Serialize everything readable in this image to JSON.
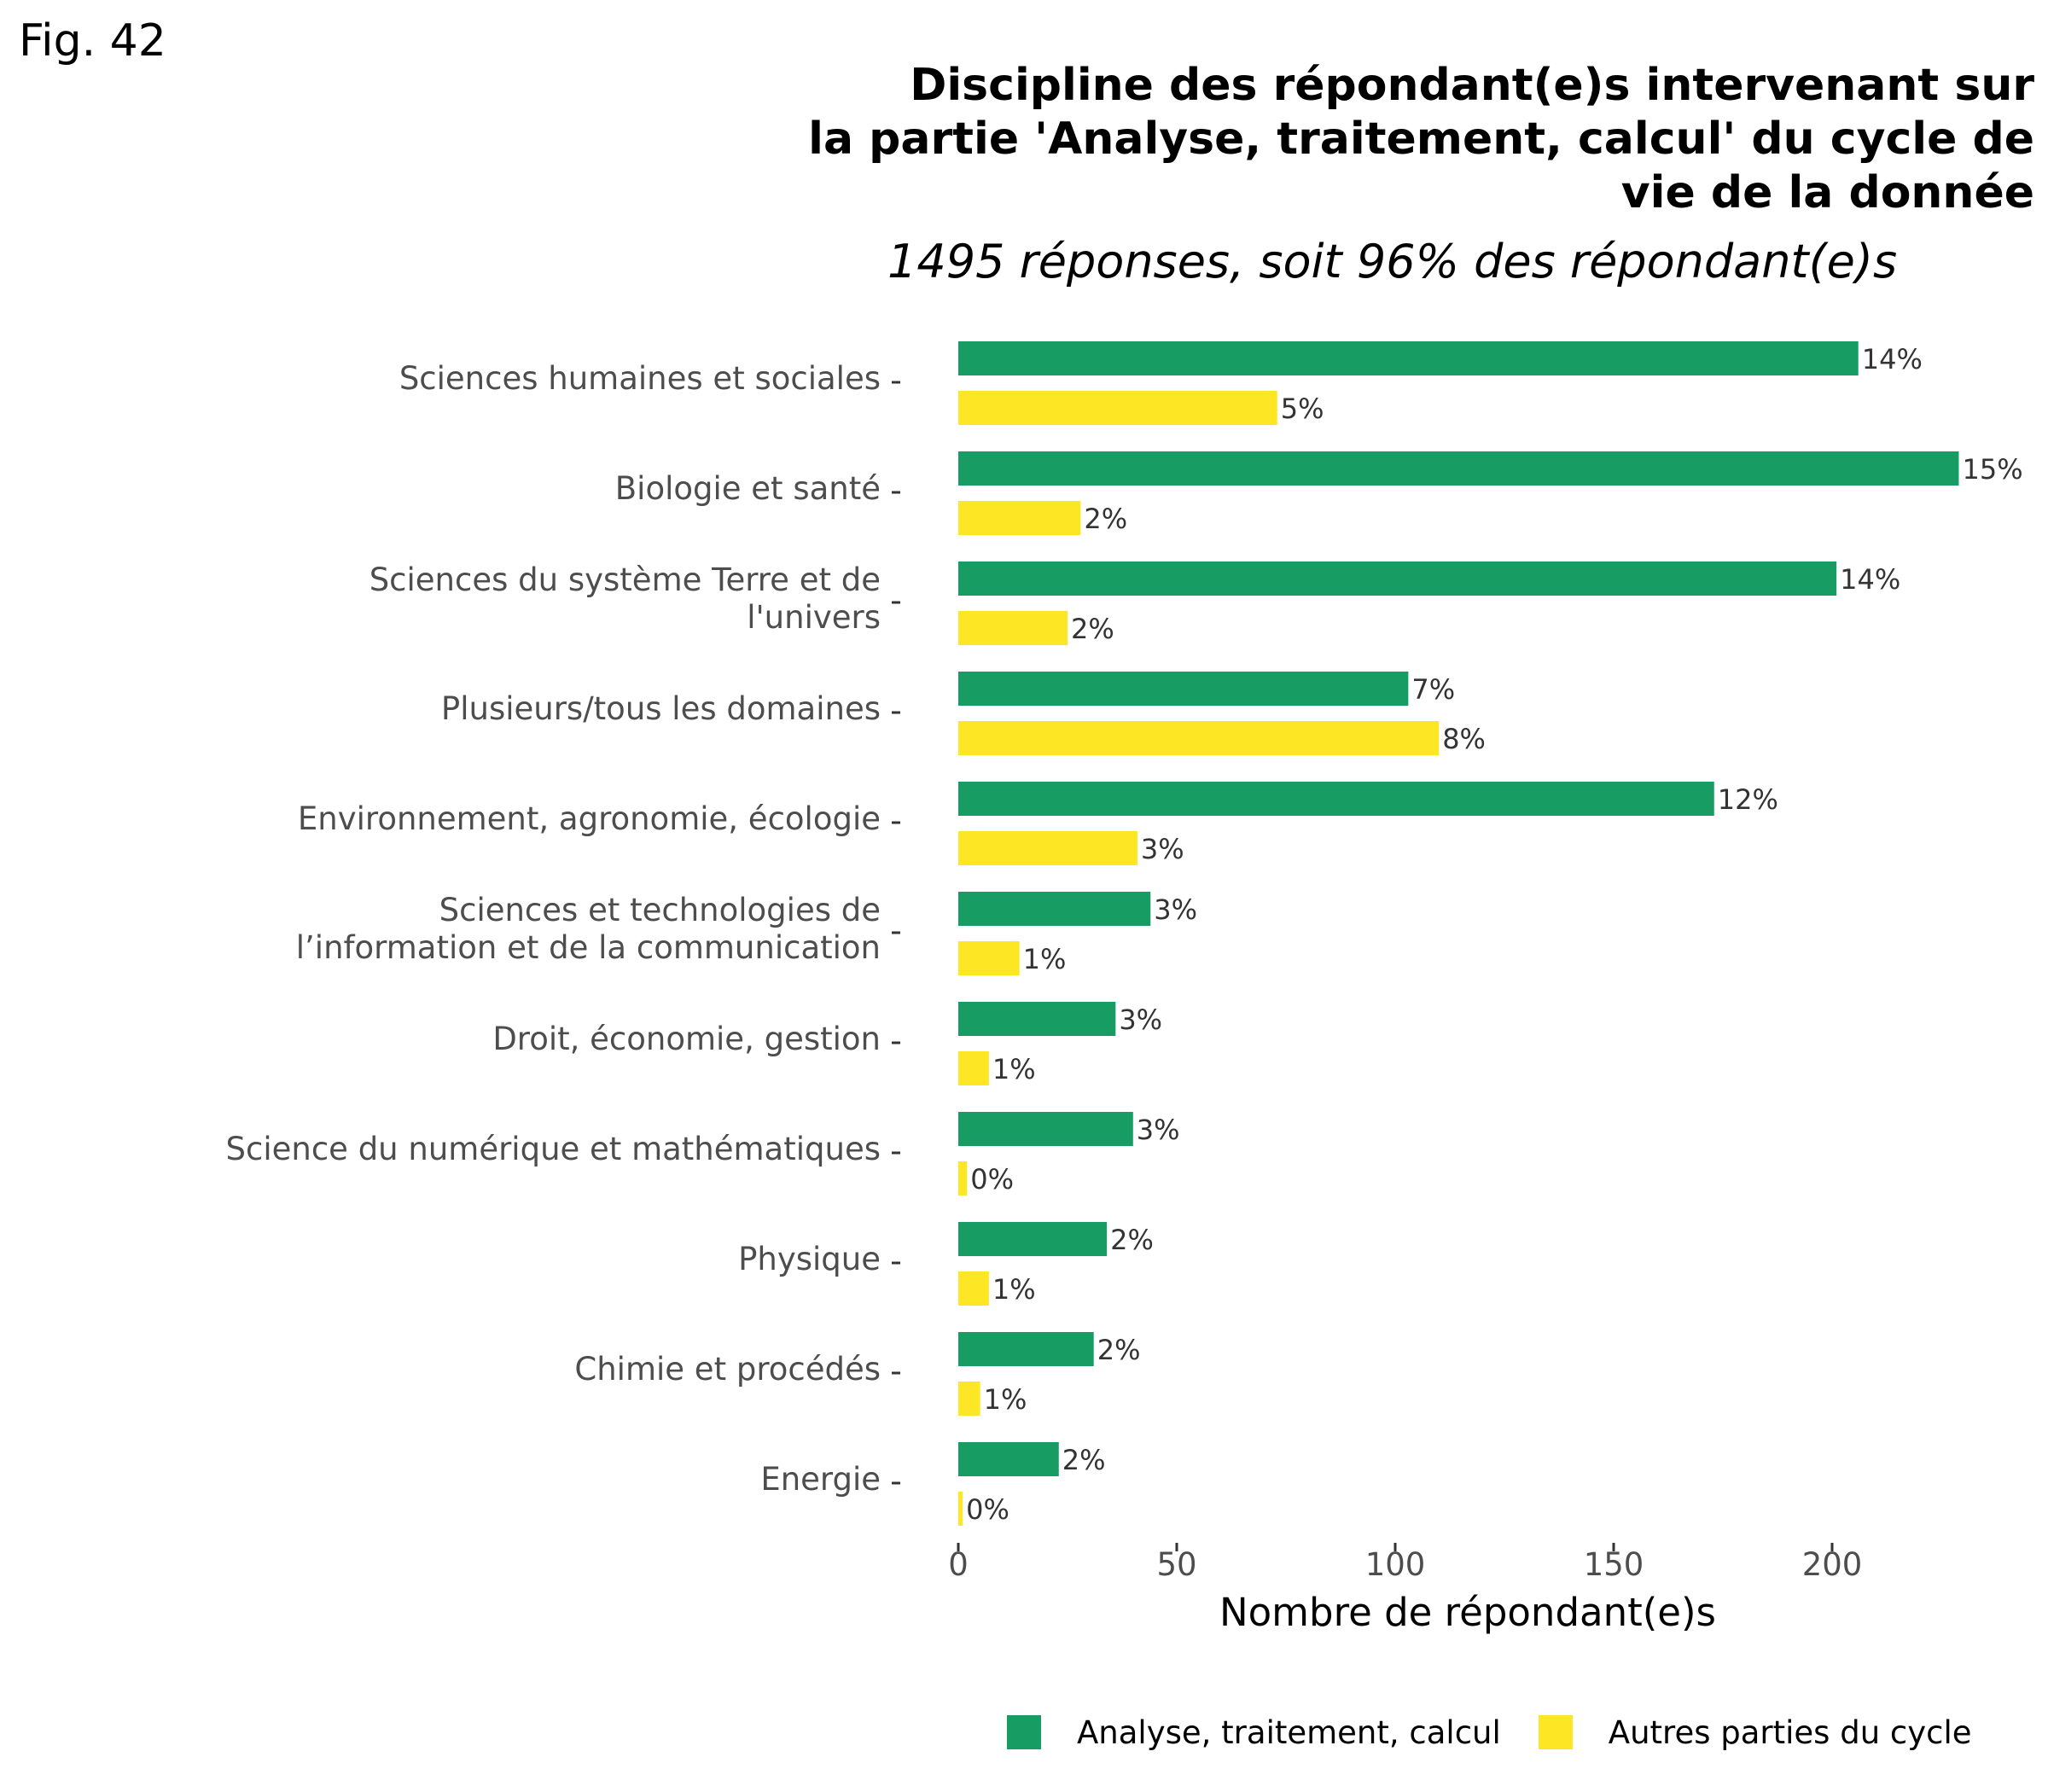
{
  "figure_label": "Fig. 42",
  "chart_data": {
    "type": "bar",
    "orientation": "horizontal",
    "title_lines": [
      "Discipline des répondant(e)s intervenant sur",
      "la partie 'Analyse, traitement, calcul' du cycle de",
      "vie de la donnée"
    ],
    "subtitle": "1495 réponses, soit 96% des répondant(e)s",
    "xlabel": "Nombre de répondant(e)s",
    "ylabel": "",
    "xlim": [
      0,
      230
    ],
    "xticks": [
      0,
      50,
      100,
      150,
      200
    ],
    "grid": false,
    "legend_position": "bottom",
    "categories": [
      [
        "Sciences humaines et sociales"
      ],
      [
        "Biologie et santé"
      ],
      [
        "Sciences du système Terre et de",
        "l'univers"
      ],
      [
        "Plusieurs/tous les domaines"
      ],
      [
        "Environnement, agronomie, écologie"
      ],
      [
        "Sciences et technologies de",
        "l’information et de la communication"
      ],
      [
        "Droit, économie, gestion"
      ],
      [
        "Science du numérique et mathématiques"
      ],
      [
        "Physique"
      ],
      [
        "Chimie et procédés"
      ],
      [
        "Energie"
      ]
    ],
    "series": [
      {
        "name": "Analyse, traitement, calcul",
        "color": "#179c63",
        "values": [
          206,
          229,
          201,
          103,
          173,
          44,
          36,
          40,
          34,
          31,
          23
        ],
        "labels": [
          "14%",
          "15%",
          "14%",
          "7%",
          "12%",
          "3%",
          "3%",
          "3%",
          "2%",
          "2%",
          "2%"
        ]
      },
      {
        "name": "Autres parties du cycle",
        "color": "#fde725",
        "values": [
          73,
          28,
          25,
          110,
          41,
          14,
          7,
          2,
          7,
          5,
          1
        ],
        "labels": [
          "5%",
          "2%",
          "2%",
          "8%",
          "3%",
          "1%",
          "1%",
          "0%",
          "1%",
          "1%",
          "0%"
        ]
      }
    ]
  }
}
